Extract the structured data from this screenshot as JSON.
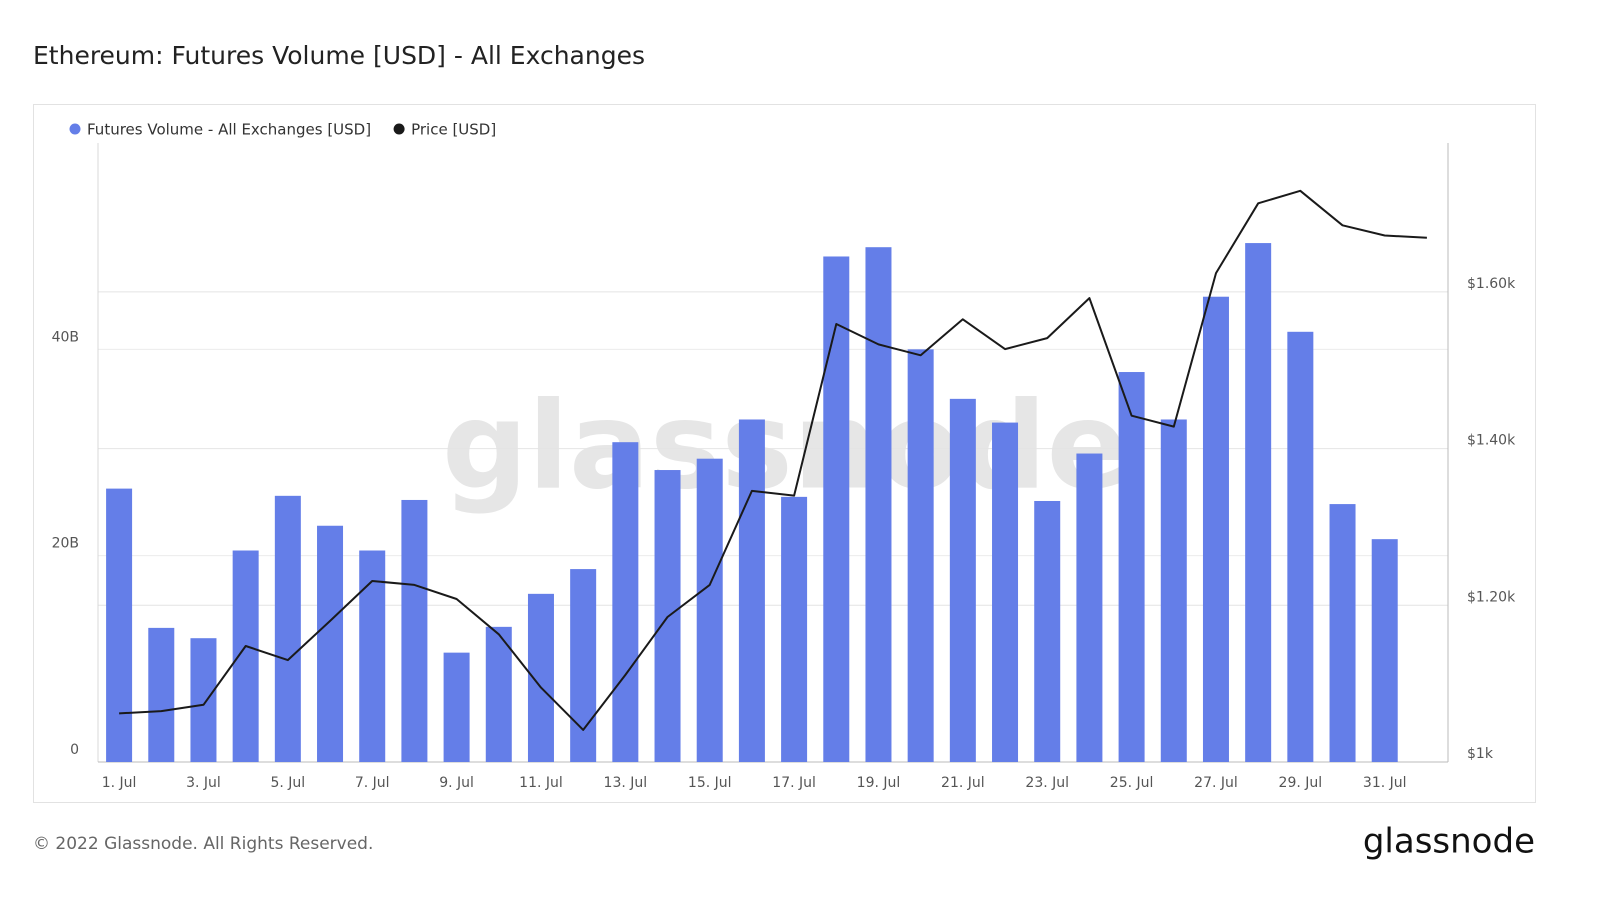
{
  "chart_data": {
    "type": "bar-line",
    "title": "Ethereum: Futures Volume [USD] - All Exchanges",
    "watermark": "glassnode",
    "footer": "© 2022 Glassnode. All Rights Reserved.",
    "logo": "glassnode",
    "categories": [
      "1. Jul",
      null,
      "3. Jul",
      null,
      "5. Jul",
      null,
      "7. Jul",
      null,
      "9. Jul",
      null,
      "11. Jul",
      null,
      "13. Jul",
      null,
      "15. Jul",
      null,
      "17. Jul",
      null,
      "19. Jul",
      null,
      "21. Jul",
      null,
      "23. Jul",
      null,
      "25. Jul",
      null,
      "27. Jul",
      null,
      "29. Jul",
      null,
      "31. Jul",
      null
    ],
    "series": [
      {
        "name": "Futures Volume - All Exchanges [USD]",
        "color": "#647ee8",
        "kind": "bar",
        "values": [
          26.5,
          13.0,
          12.0,
          20.5,
          25.8,
          22.9,
          20.5,
          25.4,
          10.6,
          13.1,
          16.3,
          18.7,
          31.0,
          28.3,
          29.4,
          33.2,
          25.7,
          49.0,
          49.9,
          40.0,
          35.2,
          32.9,
          25.3,
          29.9,
          37.8,
          33.2,
          45.1,
          50.3,
          41.7,
          25.0,
          21.6,
          null
        ]
      },
      {
        "name": "Price [USD]",
        "color": "#1a1a1a",
        "kind": "line",
        "axis": "y2",
        "values": [
          1062,
          1065,
          1073,
          1148,
          1130,
          1180,
          1231,
          1226,
          1208,
          1163,
          1095,
          1041,
          1111,
          1185,
          1226,
          1346,
          1340,
          1559,
          1533,
          1519,
          1565,
          1527,
          1541,
          1592,
          1442,
          1428,
          1624,
          1713,
          1729,
          1685,
          1672,
          1669
        ]
      }
    ],
    "ylim": [
      0,
      60
    ],
    "yticks": [
      0,
      {
        "value": 20,
        "label": "20B"
      },
      {
        "value": 40,
        "label": "40B"
      }
    ],
    "y2lim": [
      1000,
      1790
    ],
    "y2ticks": [
      {
        "value": 1000,
        "label": "$1k"
      },
      {
        "value": 1200,
        "label": "$1.20k"
      },
      {
        "value": 1400,
        "label": "$1.40k"
      },
      {
        "value": 1600,
        "label": "$1.60k"
      }
    ],
    "grid": true
  }
}
